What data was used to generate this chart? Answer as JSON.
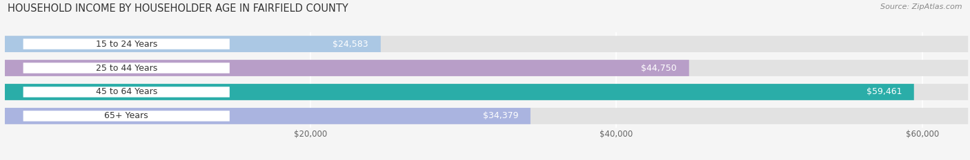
{
  "title": "HOUSEHOLD INCOME BY HOUSEHOLDER AGE IN FAIRFIELD COUNTY",
  "source": "Source: ZipAtlas.com",
  "categories": [
    "15 to 24 Years",
    "25 to 44 Years",
    "45 to 64 Years",
    "65+ Years"
  ],
  "values": [
    24583,
    44750,
    59461,
    34379
  ],
  "bar_colors": [
    "#abc8e4",
    "#b89ec8",
    "#2aada8",
    "#aab4e0"
  ],
  "label_values": [
    "$24,583",
    "$44,750",
    "$59,461",
    "$34,379"
  ],
  "xlim": [
    0,
    63000
  ],
  "xticks": [
    20000,
    40000,
    60000
  ],
  "xticklabels": [
    "$20,000",
    "$40,000",
    "$60,000"
  ],
  "background_color": "#f5f5f5",
  "bar_background_color": "#e2e2e2",
  "bar_height": 0.68,
  "title_fontsize": 10.5,
  "label_fontsize": 9,
  "tick_fontsize": 8.5,
  "source_fontsize": 8
}
